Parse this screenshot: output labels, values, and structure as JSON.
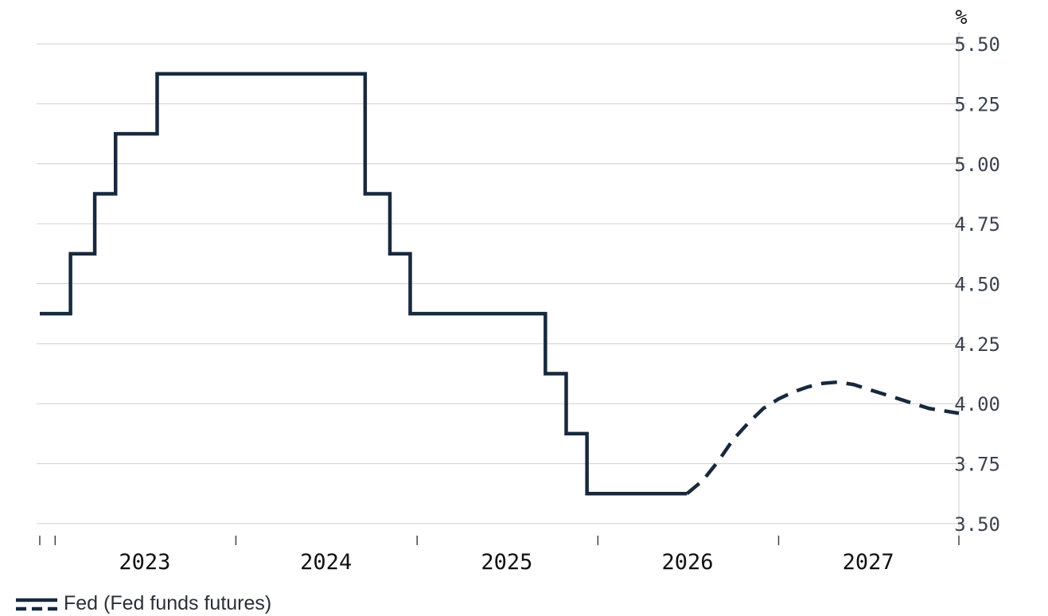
{
  "chart_data": {
    "type": "line",
    "unit_label": "%",
    "yticks": [
      "3.50",
      "3.75",
      "4.00",
      "4.25",
      "4.50",
      "4.75",
      "5.00",
      "5.25",
      "5.50"
    ],
    "ytick_values": [
      3.5,
      3.75,
      4.0,
      4.25,
      4.5,
      4.75,
      5.0,
      5.25,
      5.5
    ],
    "ylim": [
      3.45,
      5.55
    ],
    "xticks": [
      "2023",
      "2024",
      "2025",
      "2026",
      "2027"
    ],
    "xlim": [
      "2022-12-01",
      "2027-12-31"
    ],
    "y_axis_side": "right",
    "grid": "horizontal",
    "legend": {
      "position": "bottom-left",
      "label": "Fed (Fed funds futures)"
    },
    "colors": {
      "line": "#18293d",
      "grid": "#cfcfcf",
      "axis": "#444444"
    },
    "series": [
      {
        "name": "Fed",
        "style": "solid",
        "step": true,
        "points": [
          [
            "2022-12-01",
            4.375
          ],
          [
            "2023-02-01",
            4.625
          ],
          [
            "2023-03-22",
            4.875
          ],
          [
            "2023-05-03",
            5.125
          ],
          [
            "2023-07-26",
            5.375
          ],
          [
            "2024-09-18",
            4.875
          ],
          [
            "2024-11-07",
            4.625
          ],
          [
            "2024-12-18",
            4.375
          ],
          [
            "2025-09-17",
            4.125
          ],
          [
            "2025-10-29",
            3.875
          ],
          [
            "2025-12-10",
            3.625
          ],
          [
            "2026-06-30",
            3.625
          ]
        ]
      },
      {
        "name": "Fed funds futures",
        "style": "dashed",
        "step": false,
        "points": [
          [
            "2026-06-30",
            3.625
          ],
          [
            "2026-08-01",
            3.68
          ],
          [
            "2026-09-01",
            3.76
          ],
          [
            "2026-10-01",
            3.85
          ],
          [
            "2026-11-01",
            3.92
          ],
          [
            "2026-12-01",
            3.98
          ],
          [
            "2027-01-01",
            4.02
          ],
          [
            "2027-02-01",
            4.05
          ],
          [
            "2027-03-01",
            4.07
          ],
          [
            "2027-04-01",
            4.085
          ],
          [
            "2027-05-01",
            4.09
          ],
          [
            "2027-06-01",
            4.08
          ],
          [
            "2027-07-01",
            4.06
          ],
          [
            "2027-08-01",
            4.04
          ],
          [
            "2027-09-01",
            4.02
          ],
          [
            "2027-10-01",
            4.0
          ],
          [
            "2027-11-01",
            3.98
          ],
          [
            "2027-12-31",
            3.96
          ]
        ]
      }
    ]
  }
}
